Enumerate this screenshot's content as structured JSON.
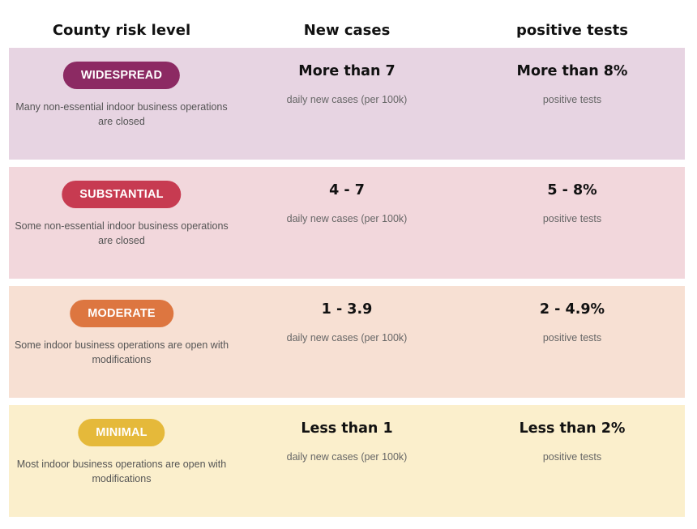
{
  "header": {
    "col1": "County risk level",
    "col2": "New cases",
    "col3": "positive tests"
  },
  "tiers": [
    {
      "badge": "WIDESPREAD",
      "desc_line1": "Many non-essential indoor business operations",
      "desc_line2": "are closed",
      "cases": "More than 7",
      "cases_label": "daily new cases (per 100k)",
      "tests": "More than 8%",
      "tests_label": "positive tests",
      "badge_color": "#8c2a63",
      "bg_color": "#e7d4e2"
    },
    {
      "badge": "SUBSTANTIAL",
      "desc_line1": "Some non-essential indoor business operations",
      "desc_line2": "are closed",
      "cases": "4 - 7",
      "cases_label": "daily new cases (per 100k)",
      "tests": "5 - 8%",
      "tests_label": "positive tests",
      "badge_color": "#c73b51",
      "bg_color": "#f2d7dc"
    },
    {
      "badge": "MODERATE",
      "desc_line1": "Some indoor business operations are open with",
      "desc_line2": "modifications",
      "cases": "1 - 3.9",
      "cases_label": "daily new cases (per 100k)",
      "tests": "2 - 4.9%",
      "tests_label": "positive tests",
      "badge_color": "#dd7640",
      "bg_color": "#f7e0d3"
    },
    {
      "badge": "MINIMAL",
      "desc_line1": "Most indoor business operations are open with",
      "desc_line2": "modifications",
      "cases": "Less than 1",
      "cases_label": "daily new cases (per 100k)",
      "tests": "Less than 2%",
      "tests_label": "positive tests",
      "badge_color": "#e5b93a",
      "bg_color": "#fbefcc"
    }
  ]
}
